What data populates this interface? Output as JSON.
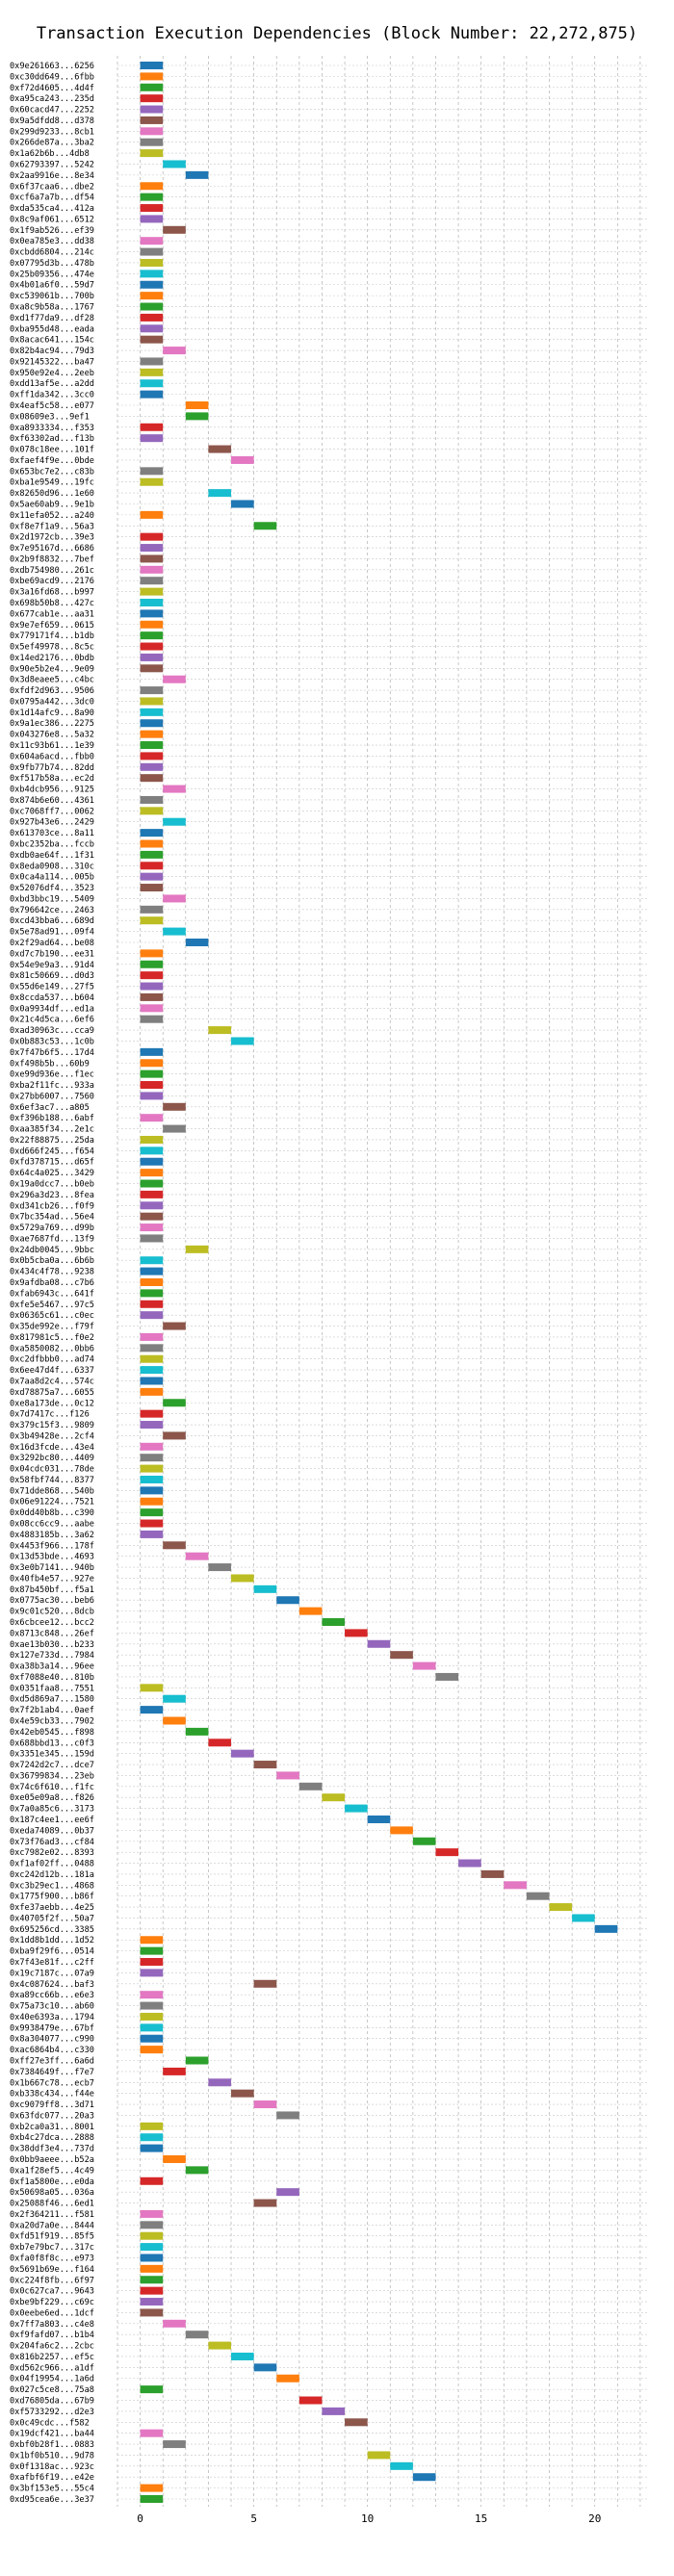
{
  "chart_data": {
    "type": "bar",
    "title": "Transaction Execution Dependencies (Block Number: 22,272,875)",
    "xlabel": "",
    "ylabel": "",
    "xlim": [
      -1,
      22.3
    ],
    "xticks": [
      0,
      5,
      10,
      15,
      20
    ],
    "grid": true,
    "bar_width": 1,
    "colors": [
      "#1f77b4",
      "#ff7f0e",
      "#2ca02c",
      "#d62728",
      "#9467bd",
      "#8c564b",
      "#e377c2",
      "#7f7f7f",
      "#bcbd22",
      "#17becf"
    ],
    "transactions": [
      {
        "label": "0x9e261663...6256",
        "start": 0
      },
      {
        "label": "0xc30dd649...6fbb",
        "start": 0
      },
      {
        "label": "0xf72d4605...4d4f",
        "start": 0
      },
      {
        "label": "0xa95ca243...235d",
        "start": 0
      },
      {
        "label": "0x60cacd47...2252",
        "start": 0
      },
      {
        "label": "0x9a5dfdd8...d378",
        "start": 0
      },
      {
        "label": "0x299d9233...8cb1",
        "start": 0
      },
      {
        "label": "0x266de87a...3ba2",
        "start": 0
      },
      {
        "label": "0x1a62b6b...4db8",
        "start": 0
      },
      {
        "label": "0x62793397...5242",
        "start": 1
      },
      {
        "label": "0x2aa9916e...8e34",
        "start": 2
      },
      {
        "label": "0x6f37caa6...dbe2",
        "start": 0
      },
      {
        "label": "0xcf6a7a7b...df54",
        "start": 0
      },
      {
        "label": "0xda535ca4...412a",
        "start": 0
      },
      {
        "label": "0x8c9af061...6512",
        "start": 0
      },
      {
        "label": "0x1f9ab526...ef39",
        "start": 1
      },
      {
        "label": "0x0ea785e3...dd38",
        "start": 0
      },
      {
        "label": "0xcbdd6804...214c",
        "start": 0
      },
      {
        "label": "0x07795d3b...478b",
        "start": 0
      },
      {
        "label": "0x25b09356...474e",
        "start": 0
      },
      {
        "label": "0x4b01a6f0...59d7",
        "start": 0
      },
      {
        "label": "0xc539061b...700b",
        "start": 0
      },
      {
        "label": "0xa8c9b58a...1767",
        "start": 0
      },
      {
        "label": "0xd1f77da9...df28",
        "start": 0
      },
      {
        "label": "0xba955d48...eada",
        "start": 0
      },
      {
        "label": "0x8acac641...154c",
        "start": 0
      },
      {
        "label": "0x82b4ac94...79d3",
        "start": 1
      },
      {
        "label": "0x92145322...ba47",
        "start": 0
      },
      {
        "label": "0x950e92e4...2eeb",
        "start": 0
      },
      {
        "label": "0xdd13af5e...a2dd",
        "start": 0
      },
      {
        "label": "0xff1da342...3cc0",
        "start": 0
      },
      {
        "label": "0x4eaf5c58...e077",
        "start": 2
      },
      {
        "label": "0x08609e3...9ef1",
        "start": 2
      },
      {
        "label": "0xa8933334...f353",
        "start": 0
      },
      {
        "label": "0xf63302ad...f13b",
        "start": 0
      },
      {
        "label": "0x078c18ee...101f",
        "start": 3
      },
      {
        "label": "0xfaef4f9e...0bde",
        "start": 4
      },
      {
        "label": "0x653bc7e2...c83b",
        "start": 0
      },
      {
        "label": "0xba1e9549...19fc",
        "start": 0
      },
      {
        "label": "0x82650d96...1e60",
        "start": 3
      },
      {
        "label": "0x5ae60ab9...9e1b",
        "start": 4
      },
      {
        "label": "0x11efa052...a240",
        "start": 0
      },
      {
        "label": "0xf8e7f1a9...56a3",
        "start": 5
      },
      {
        "label": "0x2d1972cb...39e3",
        "start": 0
      },
      {
        "label": "0x7e95167d...6686",
        "start": 0
      },
      {
        "label": "0x2b9f8832...7bef",
        "start": 0
      },
      {
        "label": "0xdb754980...261c",
        "start": 0
      },
      {
        "label": "0xbe69acd9...2176",
        "start": 0
      },
      {
        "label": "0x3a16fd68...b997",
        "start": 0
      },
      {
        "label": "0x698b50b8...427c",
        "start": 0
      },
      {
        "label": "0x677cab1e...aa31",
        "start": 0
      },
      {
        "label": "0x9e7ef659...0615",
        "start": 0
      },
      {
        "label": "0x779171f4...b1db",
        "start": 0
      },
      {
        "label": "0x5ef49978...8c5c",
        "start": 0
      },
      {
        "label": "0x14ed2176...0bdb",
        "start": 0
      },
      {
        "label": "0x90e5b2e4...9e09",
        "start": 0
      },
      {
        "label": "0x3d8eaee5...c4bc",
        "start": 1
      },
      {
        "label": "0xfdf2d963...9506",
        "start": 0
      },
      {
        "label": "0x0795a442...3dc0",
        "start": 0
      },
      {
        "label": "0x1d14afc9...8a90",
        "start": 0
      },
      {
        "label": "0x9a1ec386...2275",
        "start": 0
      },
      {
        "label": "0x043276e8...5a32",
        "start": 0
      },
      {
        "label": "0x11c93b61...1e39",
        "start": 0
      },
      {
        "label": "0x604a6acd...fbb0",
        "start": 0
      },
      {
        "label": "0x9fb77b74...82dd",
        "start": 0
      },
      {
        "label": "0xf517b58a...ec2d",
        "start": 0
      },
      {
        "label": "0xb4dcb956...9125",
        "start": 1
      },
      {
        "label": "0x874b6e60...4361",
        "start": 0
      },
      {
        "label": "0xc7068ff7...0062",
        "start": 0
      },
      {
        "label": "0x927b43e6...2429",
        "start": 1
      },
      {
        "label": "0x613703ce...8a11",
        "start": 0
      },
      {
        "label": "0xbc2352ba...fccb",
        "start": 0
      },
      {
        "label": "0xdb0ae64f...1f31",
        "start": 0
      },
      {
        "label": "0x8eda0908...310c",
        "start": 0
      },
      {
        "label": "0x0ca4a114...005b",
        "start": 0
      },
      {
        "label": "0x52076df4...3523",
        "start": 0
      },
      {
        "label": "0xbd3bbc19...5409",
        "start": 1
      },
      {
        "label": "0x796642ce...2463",
        "start": 0
      },
      {
        "label": "0xcd43bba6...689d",
        "start": 0
      },
      {
        "label": "0x5e78ad91...09f4",
        "start": 1
      },
      {
        "label": "0x2f29ad64...be08",
        "start": 2
      },
      {
        "label": "0xd7c7b190...ee31",
        "start": 0
      },
      {
        "label": "0x54e9e9a3...91d4",
        "start": 0
      },
      {
        "label": "0x81c50669...d0d3",
        "start": 0
      },
      {
        "label": "0x55d6e149...27f5",
        "start": 0
      },
      {
        "label": "0x8ccda537...b604",
        "start": 0
      },
      {
        "label": "0x0a9934df...ed1a",
        "start": 0
      },
      {
        "label": "0x21c4d5ca...6ef6",
        "start": 0
      },
      {
        "label": "0xad30963c...cca9",
        "start": 3
      },
      {
        "label": "0x0b883c53...1c0b",
        "start": 4
      },
      {
        "label": "0x7f47b6f5...17d4",
        "start": 0
      },
      {
        "label": "0xf498b5b...60b9",
        "start": 0
      },
      {
        "label": "0xe99d936e...f1ec",
        "start": 0
      },
      {
        "label": "0xba2f11fc...933a",
        "start": 0
      },
      {
        "label": "0x27bb6007...7560",
        "start": 0
      },
      {
        "label": "0x6ef3ac7...a805",
        "start": 1
      },
      {
        "label": "0xf396b188...6abf",
        "start": 0
      },
      {
        "label": "0xaa385f34...2e1c",
        "start": 1
      },
      {
        "label": "0x22f88875...25da",
        "start": 0
      },
      {
        "label": "0xd666f245...f654",
        "start": 0
      },
      {
        "label": "0xfd378715...d65f",
        "start": 0
      },
      {
        "label": "0x64c4a025...3429",
        "start": 0
      },
      {
        "label": "0x19a0dcc7...b0eb",
        "start": 0
      },
      {
        "label": "0x296a3d23...8fea",
        "start": 0
      },
      {
        "label": "0xd341cb26...f0f9",
        "start": 0
      },
      {
        "label": "0x7bc354ad...56e4",
        "start": 0
      },
      {
        "label": "0x5729a769...d99b",
        "start": 0
      },
      {
        "label": "0xae7687fd...13f9",
        "start": 0
      },
      {
        "label": "0x24db0045...9bbc",
        "start": 2
      },
      {
        "label": "0x0b5cba0a...6b6b",
        "start": 0
      },
      {
        "label": "0x434c4f78...9238",
        "start": 0
      },
      {
        "label": "0x9afdba08...c7b6",
        "start": 0
      },
      {
        "label": "0xfab6943c...641f",
        "start": 0
      },
      {
        "label": "0xfe5e5467...97c5",
        "start": 0
      },
      {
        "label": "0x06365c61...c0ec",
        "start": 0
      },
      {
        "label": "0x35de992e...f79f",
        "start": 1
      },
      {
        "label": "0x817981c5...f0e2",
        "start": 0
      },
      {
        "label": "0xa5850082...0bb6",
        "start": 0
      },
      {
        "label": "0xc2dfbbb0...ad74",
        "start": 0
      },
      {
        "label": "0x6ee47d4f...6337",
        "start": 0
      },
      {
        "label": "0x7aa8d2c4...574c",
        "start": 0
      },
      {
        "label": "0xd78875a7...6055",
        "start": 0
      },
      {
        "label": "0xe8a173de...0c12",
        "start": 1
      },
      {
        "label": "0x7d7417c...f126",
        "start": 0
      },
      {
        "label": "0x379c15f3...9809",
        "start": 0
      },
      {
        "label": "0x3b49428e...2cf4",
        "start": 1
      },
      {
        "label": "0x16d3fcde...43e4",
        "start": 0
      },
      {
        "label": "0x3292bc80...4409",
        "start": 0
      },
      {
        "label": "0x04cdc031...78de",
        "start": 0
      },
      {
        "label": "0x58fbf744...8377",
        "start": 0
      },
      {
        "label": "0x71dde868...540b",
        "start": 0
      },
      {
        "label": "0x06e91224...7521",
        "start": 0
      },
      {
        "label": "0x0dd40b8b...c390",
        "start": 0
      },
      {
        "label": "0x08cc6cc9...aabe",
        "start": 0
      },
      {
        "label": "0x4883185b...3a62",
        "start": 0
      },
      {
        "label": "0x4453f966...178f",
        "start": 1
      },
      {
        "label": "0x13d53bde...4693",
        "start": 2
      },
      {
        "label": "0x3e0b7141...940b",
        "start": 3
      },
      {
        "label": "0x40fb4e57...927e",
        "start": 4
      },
      {
        "label": "0x87b450bf...f5a1",
        "start": 5
      },
      {
        "label": "0x0775ac30...beb6",
        "start": 6
      },
      {
        "label": "0x9c01c520...8dcb",
        "start": 7
      },
      {
        "label": "0x6cbcee12...bcc2",
        "start": 8
      },
      {
        "label": "0x8713c848...26ef",
        "start": 9
      },
      {
        "label": "0xae13b030...b233",
        "start": 10
      },
      {
        "label": "0x127e733d...7984",
        "start": 11
      },
      {
        "label": "0xa38b3a14...96ee",
        "start": 12
      },
      {
        "label": "0xf7088e40...810b",
        "start": 13
      },
      {
        "label": "0x0351faa8...7551",
        "start": 0
      },
      {
        "label": "0xd5d869a7...1580",
        "start": 1
      },
      {
        "label": "0x7f2b1ab4...0aef",
        "start": 0
      },
      {
        "label": "0x4e59cb33...7902",
        "start": 1
      },
      {
        "label": "0x42eb0545...f898",
        "start": 2
      },
      {
        "label": "0x688bbd13...c0f3",
        "start": 3
      },
      {
        "label": "0x3351e345...159d",
        "start": 4
      },
      {
        "label": "0x7242d2c7...dce7",
        "start": 5
      },
      {
        "label": "0x36799834...23eb",
        "start": 6
      },
      {
        "label": "0x74c6f610...f1fc",
        "start": 7
      },
      {
        "label": "0xe05e09a8...f826",
        "start": 8
      },
      {
        "label": "0x7a0a85c6...3173",
        "start": 9
      },
      {
        "label": "0x187c4ee1...ee6f",
        "start": 10
      },
      {
        "label": "0xeda74089...0b37",
        "start": 11
      },
      {
        "label": "0x73f76ad3...cf84",
        "start": 12
      },
      {
        "label": "0xc7982e02...8393",
        "start": 13
      },
      {
        "label": "0xf1af02ff...0488",
        "start": 14
      },
      {
        "label": "0xc242d12b...181a",
        "start": 15
      },
      {
        "label": "0xc3b29ec1...4868",
        "start": 16
      },
      {
        "label": "0x1775f900...b86f",
        "start": 17
      },
      {
        "label": "0xfe37aebb...4e25",
        "start": 18
      },
      {
        "label": "0x40705f2f...50a7",
        "start": 19
      },
      {
        "label": "0x695256cd...3385",
        "start": 20
      },
      {
        "label": "0x1dd8b1dd...1d52",
        "start": 0
      },
      {
        "label": "0xba9f29f6...0514",
        "start": 0
      },
      {
        "label": "0x7f43e81f...c2ff",
        "start": 0
      },
      {
        "label": "0x19c7187c...07a9",
        "start": 0
      },
      {
        "label": "0x4c087624...baf3",
        "start": 5
      },
      {
        "label": "0xa89cc66b...e6e3",
        "start": 0
      },
      {
        "label": "0x75a73c10...ab60",
        "start": 0
      },
      {
        "label": "0x40e6393a...1794",
        "start": 0
      },
      {
        "label": "0x9938479e...67bf",
        "start": 0
      },
      {
        "label": "0x8a304077...c990",
        "start": 0
      },
      {
        "label": "0xac6864b4...c330",
        "start": 0
      },
      {
        "label": "0xff27e3ff...6a6d",
        "start": 2
      },
      {
        "label": "0x7384649f...f7e7",
        "start": 1
      },
      {
        "label": "0x1b667c78...ecb7",
        "start": 3
      },
      {
        "label": "0xb338c434...f44e",
        "start": 4
      },
      {
        "label": "0xc9079ff8...3d71",
        "start": 5
      },
      {
        "label": "0x63fdc077...20a3",
        "start": 6
      },
      {
        "label": "0xb2ca0a31...8001",
        "start": 0
      },
      {
        "label": "0xb4c27dca...2888",
        "start": 0
      },
      {
        "label": "0x38ddf3e4...737d",
        "start": 0
      },
      {
        "label": "0x0bb9aeee...b52a",
        "start": 1
      },
      {
        "label": "0xa1f28ef5...4c49",
        "start": 2
      },
      {
        "label": "0xf1a5800e...e0da",
        "start": 0
      },
      {
        "label": "0x50698a05...036a",
        "start": 6
      },
      {
        "label": "0x25088f46...6ed1",
        "start": 5
      },
      {
        "label": "0x2f364211...f581",
        "start": 0
      },
      {
        "label": "0xa20d7a0e...8444",
        "start": 0
      },
      {
        "label": "0xfd51f919...85f5",
        "start": 0
      },
      {
        "label": "0xb7e79bc7...317c",
        "start": 0
      },
      {
        "label": "0xfa0f8f8c...e973",
        "start": 0
      },
      {
        "label": "0x5691b69e...f164",
        "start": 0
      },
      {
        "label": "0xc224f8fb...6f97",
        "start": 0
      },
      {
        "label": "0x0c627ca7...9643",
        "start": 0
      },
      {
        "label": "0xbe9bf229...c69c",
        "start": 0
      },
      {
        "label": "0x0eebe6ed...1dcf",
        "start": 0
      },
      {
        "label": "0x7ff7a803...c4e8",
        "start": 1
      },
      {
        "label": "0xf9fafd07...b1b4",
        "start": 2
      },
      {
        "label": "0x204fa6c2...2cbc",
        "start": 3
      },
      {
        "label": "0x816b2257...ef5c",
        "start": 4
      },
      {
        "label": "0xd562c966...a1df",
        "start": 5
      },
      {
        "label": "0x04f19954...1a6d",
        "start": 6
      },
      {
        "label": "0x027c5ce8...75a8",
        "start": 0
      },
      {
        "label": "0xd76805da...67b9",
        "start": 7
      },
      {
        "label": "0xf5733292...d2e3",
        "start": 8
      },
      {
        "label": "0x0c49cdc...f582",
        "start": 9
      },
      {
        "label": "0x19dcf421...ba44",
        "start": 0
      },
      {
        "label": "0xbf0b28f1...0883",
        "start": 1
      },
      {
        "label": "0x1bf0b510...9d78",
        "start": 10
      },
      {
        "label": "0x0f1318ac...923c",
        "start": 11
      },
      {
        "label": "0xafbf6f19...e42e",
        "start": 12
      },
      {
        "label": "0x3bf153e5...55c4",
        "start": 0
      },
      {
        "label": "0xd95cea6e...3e37",
        "start": 0
      }
    ]
  }
}
